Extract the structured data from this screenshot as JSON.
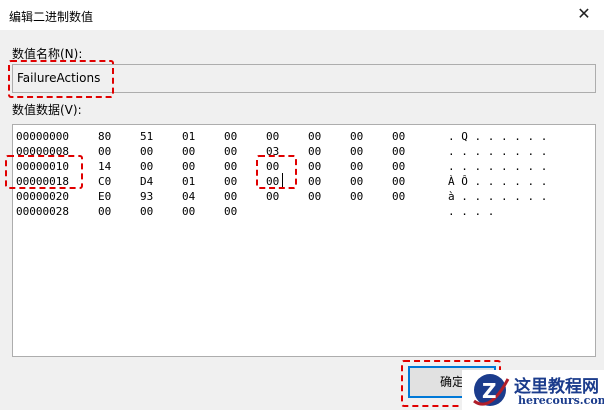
{
  "window": {
    "title": "编辑二进制数值",
    "close_icon": "close-icon"
  },
  "name_label": "数值名称(N):",
  "name_value": "FailureActions",
  "data_label": "数值数据(V):",
  "rows": [
    {
      "addr": "00000000",
      "bytes": [
        "80",
        "51",
        "01",
        "00",
        "00",
        "00",
        "00",
        "00"
      ],
      "ascii": ". Q . . . . . ."
    },
    {
      "addr": "00000008",
      "bytes": [
        "00",
        "00",
        "00",
        "00",
        "03",
        "00",
        "00",
        "00"
      ],
      "ascii": ". . . . . . . ."
    },
    {
      "addr": "00000010",
      "bytes": [
        "14",
        "00",
        "00",
        "00",
        "00",
        "00",
        "00",
        "00"
      ],
      "ascii": ". . . . . . . ."
    },
    {
      "addr": "00000018",
      "bytes": [
        "C0",
        "D4",
        "01",
        "00",
        "00",
        "00",
        "00",
        "00"
      ],
      "ascii": "À Ô . . . . . ."
    },
    {
      "addr": "00000020",
      "bytes": [
        "E0",
        "93",
        "04",
        "00",
        "00",
        "00",
        "00",
        "00"
      ],
      "ascii": "à . . . . . . ."
    },
    {
      "addr": "00000028",
      "bytes": [
        "00",
        "00",
        "00",
        "00"
      ],
      "ascii": ". . . ."
    }
  ],
  "ok_button": "确定",
  "watermark": {
    "title": "这里教程网",
    "url": "herecours.com"
  },
  "colors": {
    "highlight": "#e00000",
    "accent": "#0078d7"
  }
}
